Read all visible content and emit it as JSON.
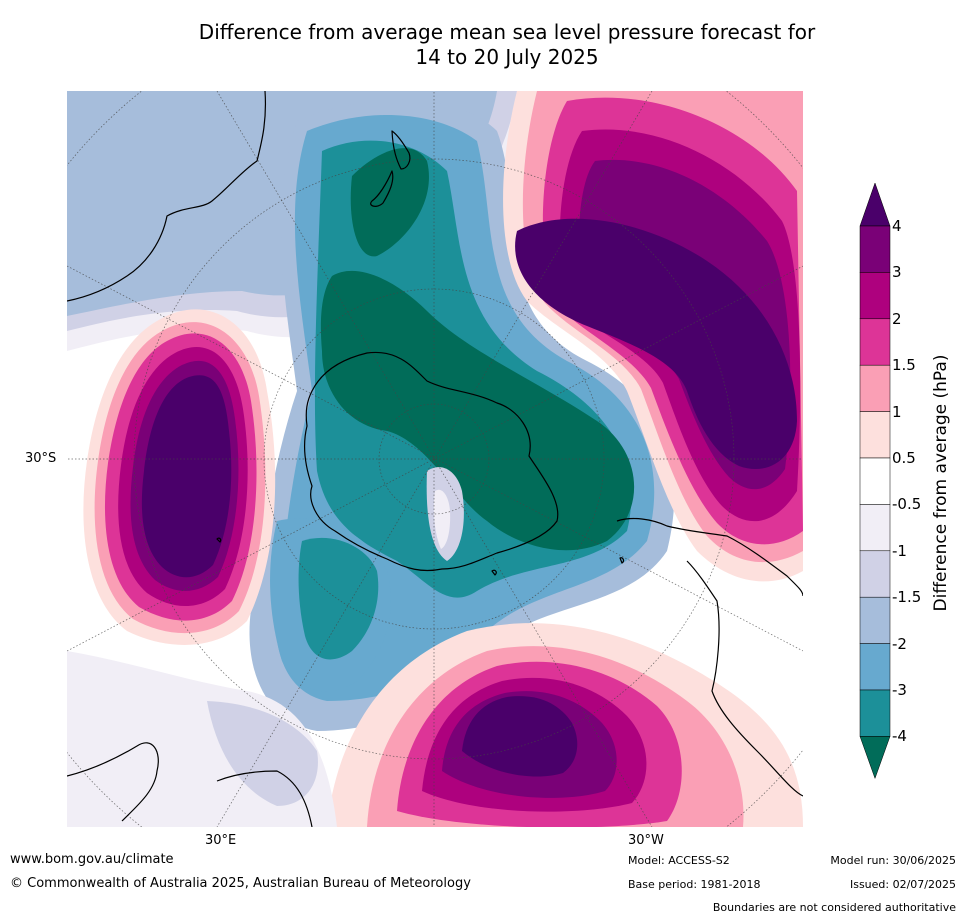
{
  "title": {
    "line1": "Difference from average mean sea level pressure forecast for",
    "line2": "14 to 20 July 2025"
  },
  "axis_labels": {
    "left_lat": "30°S",
    "bottom_left_lon": "30°E",
    "bottom_right_lon": "30°W"
  },
  "colorbar": {
    "label": "Difference from average (hPa)",
    "tick_labels": [
      "4",
      "3",
      "2",
      "1.5",
      "1",
      "0.5",
      "-0.5",
      "-1",
      "-1.5",
      "-2",
      "-3",
      "-4"
    ],
    "colors": {
      "above_4": "#4a006a",
      "3_to_4": "#7a0177",
      "2_to_3": "#ae017e",
      "1.5_to_2": "#dd3497",
      "1_to_1.5": "#fa9fb5",
      "0.5_to_1": "#fde0dd",
      "neutral": "#ffffff",
      "-1_to_-0.5": "#f1eef6",
      "-1.5_to_-1": "#d0d1e6",
      "-2_to_-1.5": "#a6bddb",
      "-3_to_-2": "#67a9cf",
      "-4_to_-3": "#1c9099",
      "below_-4": "#016c59"
    }
  },
  "footer": {
    "website": "www.bom.gov.au/climate",
    "copyright": "© Commonwealth of Australia 2025, Australian Bureau of Meteorology",
    "model": "Model: ACCESS-S2",
    "base_period": "Base period: 1981-2018",
    "model_run": "Model run: 30/06/2025",
    "issued": "Issued: 02/07/2025",
    "disclaimer": "Boundaries are not considered authoritative"
  }
}
